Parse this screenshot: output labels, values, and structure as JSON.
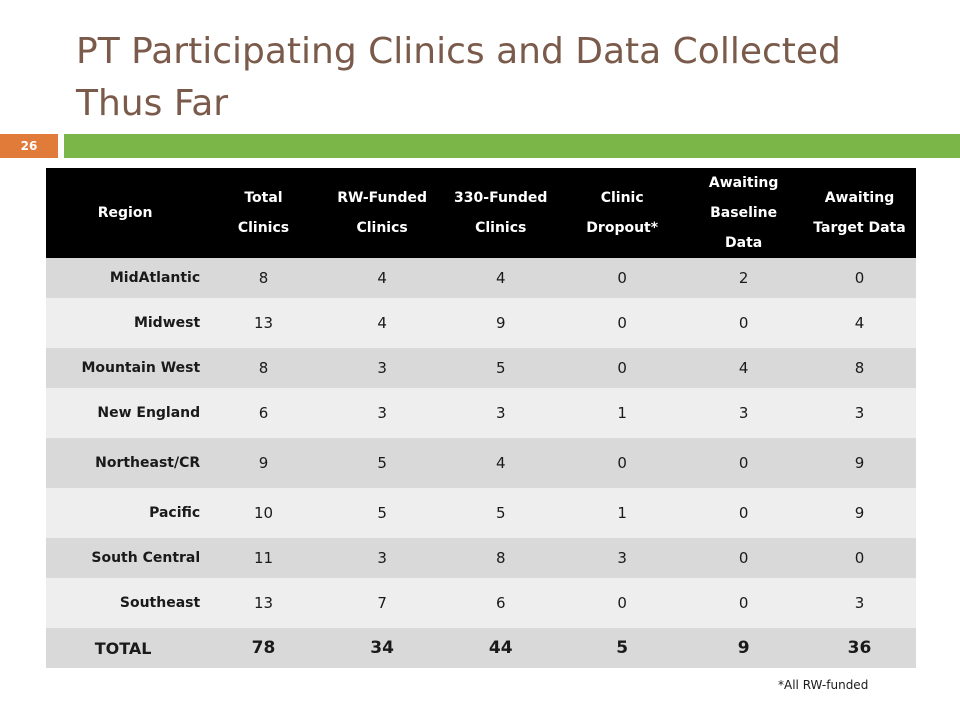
{
  "slide": {
    "title": "PT Participating Clinics and Data Collected Thus Far",
    "number": "26",
    "footnote": "*All RW-funded"
  },
  "table": {
    "headers": [
      [
        "Region"
      ],
      [
        "Total",
        "Clinics"
      ],
      [
        "RW-Funded",
        "Clinics"
      ],
      [
        "330-Funded",
        "Clinics"
      ],
      [
        "Clinic",
        "Dropout*"
      ],
      [
        "Awaiting",
        "Baseline",
        "Data"
      ],
      [
        "Awaiting",
        "Target Data"
      ]
    ],
    "rows": [
      {
        "region": "MidAtlantic",
        "values": [
          "8",
          "4",
          "4",
          "0",
          "2",
          "0"
        ]
      },
      {
        "region": "Midwest",
        "values": [
          "13",
          "4",
          "9",
          "0",
          "0",
          "4"
        ]
      },
      {
        "region": "Mountain West",
        "values": [
          "8",
          "3",
          "5",
          "0",
          "4",
          "8"
        ]
      },
      {
        "region": "New England",
        "values": [
          "6",
          "3",
          "3",
          "1",
          "3",
          "3"
        ]
      },
      {
        "region": "Northeast/CR",
        "values": [
          "9",
          "5",
          "4",
          "0",
          "0",
          "9"
        ]
      },
      {
        "region": "Pacific",
        "values": [
          "10",
          "5",
          "5",
          "1",
          "0",
          "9"
        ]
      },
      {
        "region": "South Central",
        "values": [
          "11",
          "3",
          "8",
          "3",
          "0",
          "0"
        ]
      },
      {
        "region": "Southeast",
        "values": [
          "13",
          "7",
          "6",
          "0",
          "0",
          "3"
        ]
      }
    ],
    "total": {
      "region": "TOTAL",
      "values": [
        "78",
        "34",
        "44",
        "5",
        "9",
        "36"
      ]
    }
  }
}
